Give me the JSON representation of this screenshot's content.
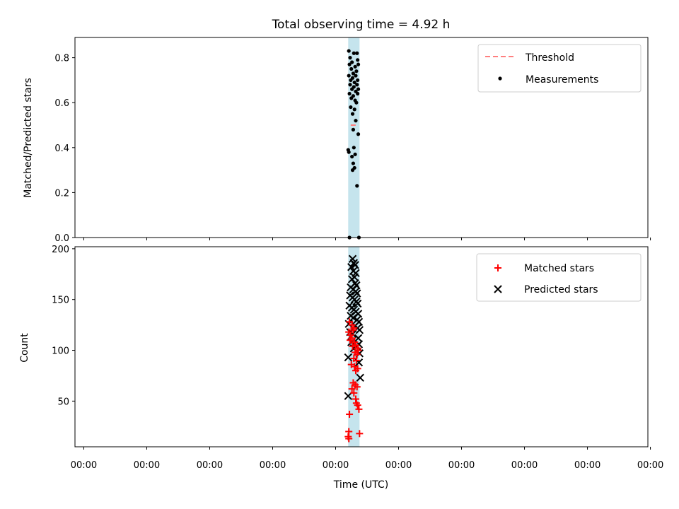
{
  "figure": {
    "title": "Total observing time = 4.92 h"
  },
  "colors": {
    "band": "#add8e6",
    "threshold": "#ff7f7f",
    "measurement": "#000000",
    "matched": "#ff0000",
    "predicted": "#000000",
    "axes": "#000000"
  },
  "chart_data": [
    {
      "type": "scatter",
      "id": "ratio-panel",
      "title": "Total observing time = 4.92 h",
      "xlabel": "",
      "ylabel": "Matched/Predicted stars",
      "xlim": [
        -4.46,
        4.64
      ],
      "ylim": [
        0,
        0.89
      ],
      "yticks": [
        0.0,
        0.2,
        0.4,
        0.6,
        0.8
      ],
      "ytick_labels": [
        "0.0",
        "0.2",
        "0.4",
        "0.6",
        "0.8"
      ],
      "x_unit": "hours (tick labels show clock time 00:00)",
      "xticks": [
        -4.32,
        -3.32,
        -2.32,
        -1.32,
        -0.32,
        0.68,
        1.68,
        2.68,
        3.68,
        4.68
      ],
      "shaded_band": [
        -0.12,
        0.06
      ],
      "legend": {
        "placement": "top-right",
        "entries": [
          {
            "label": "Threshold",
            "kind": "line"
          },
          {
            "label": "Measurements",
            "kind": "dot"
          }
        ]
      },
      "threshold": {
        "label": "Threshold",
        "y": 0.5,
        "x_range": [
          -0.08,
          0.02
        ]
      },
      "series": [
        {
          "name": "Measurements",
          "marker": "dot",
          "points": [
            [
              -0.11,
              0.83
            ],
            [
              -0.09,
              0.8
            ],
            [
              -0.06,
              0.78
            ],
            [
              -0.03,
              0.82
            ],
            [
              0.02,
              0.82
            ],
            [
              0.03,
              0.79
            ],
            [
              -0.1,
              0.77
            ],
            [
              -0.07,
              0.75
            ],
            [
              -0.04,
              0.73
            ],
            [
              -0.01,
              0.76
            ],
            [
              0.01,
              0.74
            ],
            [
              0.04,
              0.77
            ],
            [
              -0.11,
              0.72
            ],
            [
              -0.08,
              0.7
            ],
            [
              -0.05,
              0.71
            ],
            [
              -0.02,
              0.69
            ],
            [
              0.0,
              0.72
            ],
            [
              0.03,
              0.7
            ],
            [
              -0.09,
              0.68
            ],
            [
              -0.06,
              0.66
            ],
            [
              -0.03,
              0.67
            ],
            [
              0.0,
              0.65
            ],
            [
              0.02,
              0.68
            ],
            [
              0.04,
              0.66
            ],
            [
              -0.1,
              0.64
            ],
            [
              -0.07,
              0.62
            ],
            [
              -0.04,
              0.63
            ],
            [
              -0.01,
              0.61
            ],
            [
              0.01,
              0.6
            ],
            [
              0.03,
              0.64
            ],
            [
              -0.08,
              0.58
            ],
            [
              -0.05,
              0.55
            ],
            [
              -0.02,
              0.57
            ],
            [
              0.0,
              0.52
            ],
            [
              -0.04,
              0.48
            ],
            [
              0.04,
              0.46
            ],
            [
              -0.12,
              0.39
            ],
            [
              -0.11,
              0.38
            ],
            [
              -0.06,
              0.36
            ],
            [
              -0.01,
              0.37
            ],
            [
              -0.03,
              0.4
            ],
            [
              -0.04,
              0.33
            ],
            [
              -0.02,
              0.31
            ],
            [
              -0.05,
              0.3
            ],
            [
              0.02,
              0.23
            ],
            [
              -0.1,
              0.0
            ],
            [
              0.05,
              0.0
            ]
          ]
        }
      ]
    },
    {
      "type": "scatter",
      "id": "count-panel",
      "xlabel": "Time (UTC)",
      "ylabel": "Count",
      "xlim": [
        -4.46,
        4.64
      ],
      "ylim": [
        5,
        202
      ],
      "yticks": [
        50,
        100,
        150,
        200
      ],
      "ytick_labels": [
        "50",
        "100",
        "150",
        "200"
      ],
      "xticks": [
        -4.32,
        -3.32,
        -2.32,
        -1.32,
        -0.32,
        0.68,
        1.68,
        2.68,
        3.68,
        4.68
      ],
      "xtick_labels": [
        "00:00",
        "00:00",
        "00:00",
        "00:00",
        "00:00",
        "00:00",
        "00:00",
        "00:00",
        "00:00",
        "00:00"
      ],
      "shaded_band": [
        -0.12,
        0.06
      ],
      "legend": {
        "placement": "top-right",
        "entries": [
          {
            "label": "Matched stars",
            "kind": "plus"
          },
          {
            "label": "Predicted stars",
            "kind": "cross"
          }
        ]
      },
      "series": [
        {
          "name": "Matched stars",
          "marker": "plus",
          "points": [
            [
              -0.1,
              128
            ],
            [
              -0.06,
              125
            ],
            [
              -0.03,
              122
            ],
            [
              -0.11,
              118
            ],
            [
              -0.08,
              115
            ],
            [
              -0.04,
              120
            ],
            [
              -0.09,
              110
            ],
            [
              -0.06,
              112
            ],
            [
              -0.02,
              108
            ],
            [
              0.0,
              105
            ],
            [
              0.03,
              102
            ],
            [
              -0.05,
              104
            ],
            [
              -0.01,
              98
            ],
            [
              0.02,
              96
            ],
            [
              0.04,
              100
            ],
            [
              -0.03,
              92
            ],
            [
              0.01,
              90
            ],
            [
              -0.07,
              86
            ],
            [
              -0.02,
              84
            ],
            [
              0.03,
              82
            ],
            [
              0.0,
              80
            ],
            [
              -0.04,
              68
            ],
            [
              -0.01,
              66
            ],
            [
              0.02,
              64
            ],
            [
              -0.06,
              62
            ],
            [
              -0.03,
              58
            ],
            [
              0.0,
              52
            ],
            [
              0.01,
              48
            ],
            [
              0.03,
              46
            ],
            [
              0.05,
              42
            ],
            [
              -0.1,
              37
            ],
            [
              -0.11,
              20
            ],
            [
              -0.12,
              15
            ],
            [
              -0.11,
              13
            ],
            [
              0.06,
              18
            ]
          ]
        },
        {
          "name": "Predicted stars",
          "marker": "cross",
          "points": [
            [
              -0.05,
              190
            ],
            [
              -0.03,
              186
            ],
            [
              -0.01,
              184
            ],
            [
              -0.07,
              182
            ],
            [
              -0.04,
              178
            ],
            [
              0.0,
              176
            ],
            [
              -0.02,
              172
            ],
            [
              -0.06,
              170
            ],
            [
              -0.01,
              166
            ],
            [
              0.01,
              164
            ],
            [
              -0.08,
              162
            ],
            [
              -0.04,
              160
            ],
            [
              0.0,
              158
            ],
            [
              0.02,
              156
            ],
            [
              -0.09,
              154
            ],
            [
              -0.05,
              152
            ],
            [
              -0.02,
              150
            ],
            [
              0.01,
              148
            ],
            [
              0.03,
              146
            ],
            [
              -0.1,
              144
            ],
            [
              -0.06,
              142
            ],
            [
              -0.03,
              140
            ],
            [
              0.0,
              138
            ],
            [
              0.04,
              136
            ],
            [
              -0.08,
              134
            ],
            [
              -0.04,
              132
            ],
            [
              0.02,
              130
            ],
            [
              0.05,
              128
            ],
            [
              -0.11,
              126
            ],
            [
              -0.01,
              124
            ],
            [
              0.03,
              122
            ],
            [
              0.06,
              120
            ],
            [
              -0.09,
              118
            ],
            [
              -0.05,
              116
            ],
            [
              0.04,
              112
            ],
            [
              -0.07,
              108
            ],
            [
              0.02,
              104
            ],
            [
              0.05,
              106
            ],
            [
              -0.03,
              102
            ],
            [
              0.06,
              97
            ],
            [
              -0.12,
              93
            ],
            [
              0.05,
              88
            ],
            [
              0.07,
              73
            ],
            [
              -0.12,
              55
            ]
          ]
        }
      ]
    }
  ]
}
